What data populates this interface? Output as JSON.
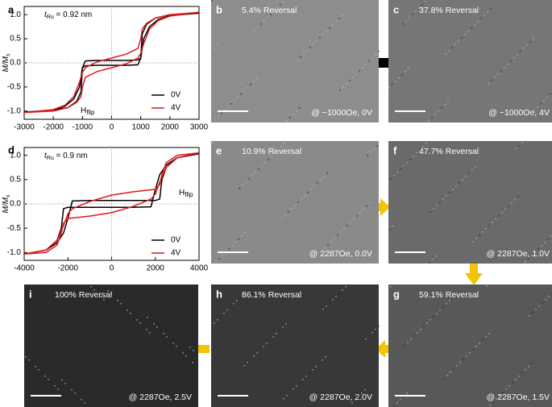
{
  "chart_data": [
    {
      "type": "line",
      "panel_label": "a",
      "thickness": {
        "symbol": "t",
        "sub": "Ru",
        "rest": " = 0.92 nm"
      },
      "ylabel": {
        "main": "M/M",
        "sub": "s"
      },
      "annotation": {
        "main": "H",
        "sub": "flip"
      },
      "xlim": [
        -3000,
        3000
      ],
      "xticks": [
        -3000,
        -2000,
        -1000,
        0,
        1000,
        2000,
        3000
      ],
      "ylim": [
        -1.17,
        1.17
      ],
      "yticks": [
        {
          "value": -1,
          "label": "-1.0"
        },
        -0.5,
        {
          "value": 0,
          "label": "0.0"
        },
        0.5,
        {
          "value": 1,
          "label": "1.0"
        }
      ],
      "series": [
        {
          "name": "0V",
          "color": "#000000",
          "x": [
            3000,
            2000,
            1500,
            1200,
            1050,
            1000,
            900,
            500,
            0,
            -500,
            -900,
            -1000,
            -1100,
            -1300,
            -1600,
            -2000,
            -3000,
            -2000,
            -1500,
            -1200,
            -1050,
            -1000,
            -900,
            -500,
            0,
            500,
            900,
            1000,
            1100,
            1300,
            1600,
            2000,
            3000
          ],
          "values": [
            1.03,
            1.0,
            0.93,
            0.8,
            0.6,
            0.1,
            0.06,
            0.05,
            0.05,
            0.05,
            0.04,
            -0.1,
            -0.5,
            -0.75,
            -0.9,
            -0.98,
            -1.02,
            -0.98,
            -0.93,
            -0.8,
            -0.6,
            -0.1,
            -0.06,
            -0.05,
            -0.05,
            -0.05,
            -0.04,
            0.1,
            0.5,
            0.75,
            0.9,
            0.98,
            1.03
          ]
        },
        {
          "name": "4V",
          "color": "#e0191b",
          "x": [
            3000,
            2000,
            1500,
            1200,
            1050,
            1000,
            900,
            500,
            0,
            -500,
            -900,
            -1000,
            -1100,
            -1300,
            -1600,
            -2000,
            -3000,
            -2000,
            -1500,
            -1200,
            -1050,
            -1000,
            -900,
            -500,
            0,
            500,
            900,
            1000,
            1100,
            1300,
            1600,
            2000,
            3000
          ],
          "values": [
            1.05,
            1.0,
            0.93,
            0.82,
            0.7,
            0.5,
            0.3,
            0.18,
            0.1,
            0.02,
            -0.1,
            -0.2,
            -0.4,
            -0.7,
            -0.88,
            -0.97,
            -1.03,
            -1.0,
            -0.93,
            -0.82,
            -0.7,
            -0.5,
            -0.3,
            -0.18,
            -0.1,
            -0.02,
            0.1,
            0.2,
            0.4,
            0.7,
            0.88,
            0.97,
            1.05
          ]
        }
      ]
    },
    {
      "type": "line",
      "panel_label": "d",
      "thickness": {
        "symbol": "t",
        "sub": "Ru",
        "rest": " = 0.9 nm"
      },
      "ylabel": {
        "main": "M/M",
        "sub": "s"
      },
      "annotation": {
        "main": "H",
        "sub": "flip"
      },
      "xlim": [
        -4000,
        4000
      ],
      "xticks": [
        -4000,
        -2000,
        0,
        2000,
        4000
      ],
      "ylim": [
        -1.16,
        1.16
      ],
      "yticks": [
        {
          "value": -1,
          "label": "-1.0"
        },
        -0.5,
        {
          "value": 0,
          "label": "0.0"
        },
        0.5,
        {
          "value": 1,
          "label": "1.0"
        }
      ],
      "series": [
        {
          "name": "0V",
          "color": "#000000",
          "x": [
            4000,
            3000,
            2500,
            2300,
            2200,
            2000,
            1000,
            0,
            -1000,
            -1800,
            -2000,
            -2200,
            -2500,
            -3000,
            -4000,
            -3000,
            -2500,
            -2300,
            -2200,
            -2000,
            -1000,
            0,
            1000,
            1800,
            2000,
            2200,
            2500,
            3000,
            4000
          ],
          "values": [
            1.03,
            0.95,
            0.75,
            0.5,
            0.1,
            0.07,
            0.07,
            0.07,
            0.07,
            0.06,
            -0.3,
            -0.6,
            -0.8,
            -0.95,
            -1.03,
            -0.95,
            -0.75,
            -0.5,
            -0.1,
            -0.07,
            -0.07,
            -0.07,
            -0.07,
            -0.06,
            0.3,
            0.6,
            0.8,
            0.95,
            1.03
          ]
        },
        {
          "name": "4V",
          "color": "#e0191b",
          "x": [
            4000,
            3000,
            2500,
            2300,
            2200,
            2000,
            1000,
            0,
            -1000,
            -1800,
            -2000,
            -2200,
            -2500,
            -3000,
            -4000,
            -3000,
            -2500,
            -2300,
            -2200,
            -2000,
            -1000,
            0,
            1000,
            1800,
            2000,
            2200,
            2500,
            3000,
            4000
          ],
          "values": [
            1.05,
            1.0,
            0.85,
            0.6,
            0.4,
            0.3,
            0.25,
            0.18,
            0.05,
            -0.1,
            -0.2,
            -0.45,
            -0.75,
            -0.95,
            -1.03,
            -1.0,
            -0.85,
            -0.6,
            -0.4,
            -0.3,
            -0.25,
            -0.18,
            -0.05,
            0.1,
            0.2,
            0.45,
            0.75,
            0.95,
            1.05
          ]
        }
      ]
    }
  ],
  "image_panels": [
    {
      "label": "b",
      "reversal": "5.4% Reversal",
      "condition": "@ −1000Oe, 0V"
    },
    {
      "label": "c",
      "reversal": "37.8% Reversal",
      "condition": "@ −1000Oe, 4V"
    },
    {
      "label": "e",
      "reversal": "10.9% Reversal",
      "condition": "@ 2287Oe, 0.0V"
    },
    {
      "label": "f",
      "reversal": "47.7% Reversal",
      "condition": "@ 2287Oe, 1.0V"
    },
    {
      "label": "g",
      "reversal": "59.1% Reversal",
      "condition": "@ 2287Oe, 1.5V"
    },
    {
      "label": "h",
      "reversal": "86.1% Reversal",
      "condition": "@ 2287Oe, 2.0V"
    },
    {
      "label": "i",
      "reversal": "100% Reversal",
      "condition": "@ 2287Oe, 2.5V"
    }
  ]
}
